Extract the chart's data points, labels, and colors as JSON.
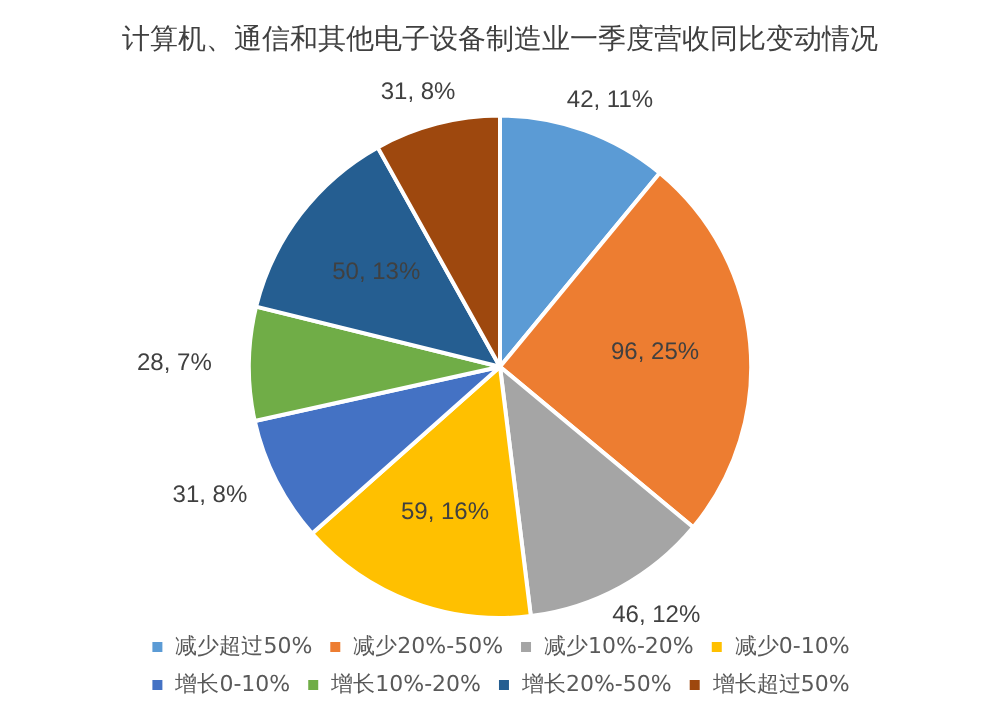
{
  "chart_data": {
    "type": "pie",
    "title": "计算机、通信和其他电子设备制造业一季度营收同比变动情况",
    "categories": [
      "减少超过50%",
      "减少20%-50%",
      "减少10%-20%",
      "减少0-10%",
      "增长0-10%",
      "增长10%-20%",
      "增长20%-50%",
      "增长超过50%"
    ],
    "values": [
      42,
      96,
      46,
      59,
      31,
      28,
      50,
      31
    ],
    "value_labels": [
      "42, 11%",
      "96, 25%",
      "46, 12%",
      "59, 16%",
      "31, 8%",
      "28, 7%",
      "50, 13%",
      "31, 8%"
    ],
    "colors": [
      "#5b9bd5",
      "#ed7d31",
      "#a5a5a5",
      "#ffc000",
      "#4472c4",
      "#70ad47",
      "#255e91",
      "#9e480e"
    ],
    "legend": "bottom"
  }
}
